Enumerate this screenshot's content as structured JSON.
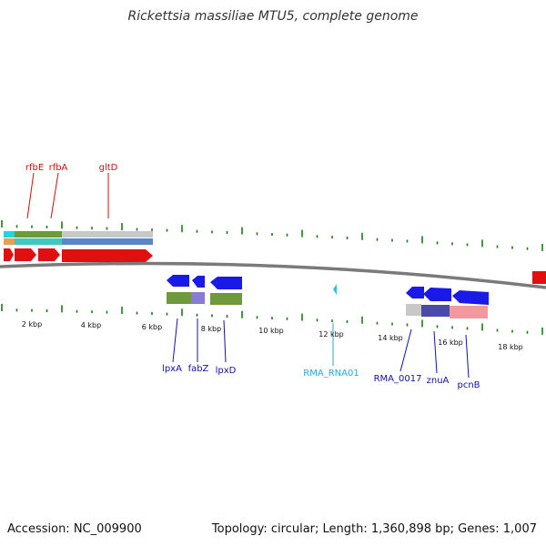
{
  "title": "Rickettsia massiliae MTU5, complete genome",
  "footer": {
    "accession": "Accession: NC_009900",
    "summary": "Topology: circular; Length: 1,360,898 bp; Genes: 1,007"
  },
  "colors": {
    "tick": "#1a7a1a",
    "backbone": "#7a7a7a",
    "forward_gene": "#e01010",
    "reverse_gene": "#1a1ae8",
    "forward_label": "#cc1111",
    "reverse_label": "#1111aa",
    "rna_label": "#22aadd",
    "rna_marker": "#33bbee"
  },
  "ticks": {
    "labels": [
      "2 kbp",
      "4 kbp",
      "6 kbp",
      "8 kbp",
      "10 kbp",
      "12 kbp",
      "14 kbp",
      "16 kbp",
      "18 kbp"
    ]
  },
  "labels": {
    "forward": [
      "rfbE",
      "rfbA",
      "gltD"
    ],
    "reverse": [
      "lpxA",
      "fabZ",
      "lpxD",
      "RMA_0017",
      "znuA",
      "pcnB"
    ],
    "rna": [
      "RMA_RNA01"
    ]
  }
}
